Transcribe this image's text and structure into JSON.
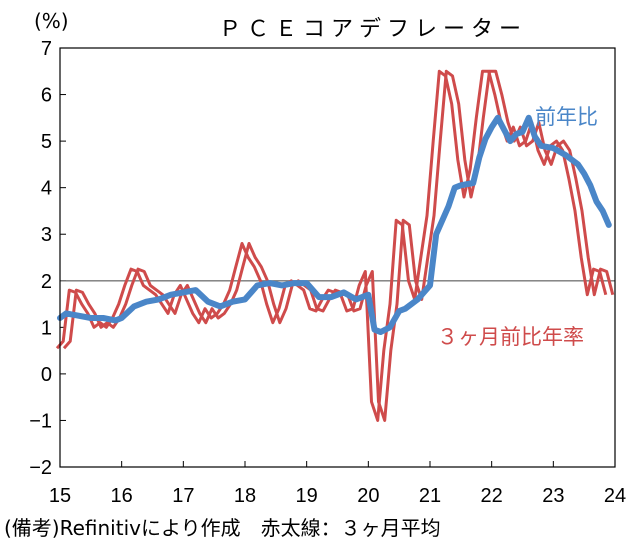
{
  "chart_data": {
    "type": "line",
    "title": "ＰＣＥコアデフレーター",
    "ylabel": "(%)",
    "xlabel": "",
    "ylim": [
      -2,
      7
    ],
    "y_ticks": [
      -2,
      -1,
      0,
      1,
      2,
      3,
      4,
      5,
      6,
      7
    ],
    "x_range": [
      15,
      24
    ],
    "x_ticks": [
      15,
      16,
      17,
      18,
      19,
      20,
      21,
      22,
      23,
      24
    ],
    "x_tick_labels": [
      "15",
      "16",
      "17",
      "18",
      "19",
      "20",
      "21",
      "22",
      "23",
      "24"
    ],
    "reference_line": 2,
    "grid": false,
    "series": [
      {
        "name": "前年比",
        "color": "#4a86c8",
        "x": [
          15.0,
          15.1,
          15.3,
          15.5,
          15.7,
          15.9,
          16.0,
          16.2,
          16.4,
          16.6,
          16.8,
          17.0,
          17.2,
          17.4,
          17.6,
          17.8,
          18.0,
          18.2,
          18.4,
          18.6,
          18.8,
          19.0,
          19.2,
          19.4,
          19.6,
          19.8,
          20.0,
          20.1,
          20.2,
          20.35,
          20.5,
          20.6,
          20.8,
          21.0,
          21.1,
          21.3,
          21.4,
          21.5,
          21.7,
          21.8,
          21.9,
          22.0,
          22.1,
          22.2,
          22.3,
          22.4,
          22.5,
          22.6,
          22.7,
          22.8,
          23.0,
          23.2,
          23.4,
          23.5,
          23.6,
          23.7,
          23.8,
          23.9
        ],
        "values": [
          1.2,
          1.3,
          1.25,
          1.2,
          1.2,
          1.15,
          1.2,
          1.45,
          1.55,
          1.6,
          1.7,
          1.75,
          1.8,
          1.55,
          1.45,
          1.55,
          1.6,
          1.9,
          1.95,
          1.9,
          1.95,
          1.95,
          1.65,
          1.65,
          1.75,
          1.6,
          1.7,
          0.95,
          0.9,
          1.0,
          1.35,
          1.4,
          1.6,
          1.9,
          3.0,
          3.6,
          4.0,
          4.05,
          4.1,
          4.65,
          5.05,
          5.3,
          5.5,
          5.25,
          5.0,
          5.15,
          5.2,
          5.5,
          5.1,
          4.9,
          4.85,
          4.7,
          4.5,
          4.3,
          4.05,
          3.7,
          3.5,
          3.2
        ]
      },
      {
        "name": "３ヶ月前比年率",
        "color": "#cf4b4b",
        "x": [
          15.0,
          15.1,
          15.2,
          15.3,
          15.4,
          15.5,
          15.6,
          15.7,
          15.8,
          15.9,
          16.0,
          16.1,
          16.2,
          16.3,
          16.4,
          16.5,
          16.6,
          16.7,
          16.8,
          16.9,
          17.0,
          17.1,
          17.2,
          17.3,
          17.4,
          17.5,
          17.6,
          17.7,
          17.8,
          17.9,
          18.0,
          18.1,
          18.2,
          18.3,
          18.4,
          18.5,
          18.6,
          18.7,
          18.8,
          18.9,
          19.0,
          19.1,
          19.2,
          19.3,
          19.4,
          19.5,
          19.6,
          19.7,
          19.8,
          19.9,
          20.0,
          20.1,
          20.2,
          20.3,
          20.4,
          20.5,
          20.6,
          20.7,
          20.8,
          20.9,
          21.0,
          21.1,
          21.2,
          21.3,
          21.4,
          21.5,
          21.6,
          21.7,
          21.8,
          21.9,
          22.0,
          22.1,
          22.2,
          22.3,
          22.4,
          22.5,
          22.6,
          22.7,
          22.8,
          22.9,
          23.0,
          23.1,
          23.2,
          23.3,
          23.4,
          23.5,
          23.6,
          23.7,
          23.8,
          23.9
        ],
        "values": [
          0.55,
          0.7,
          1.8,
          1.75,
          1.5,
          1.3,
          1.0,
          1.1,
          1.0,
          1.2,
          1.5,
          1.9,
          2.25,
          2.2,
          1.9,
          1.8,
          1.7,
          1.5,
          1.3,
          1.7,
          1.9,
          1.6,
          1.3,
          1.1,
          1.4,
          1.2,
          1.3,
          1.5,
          1.8,
          2.3,
          2.8,
          2.5,
          2.3,
          2.0,
          1.5,
          1.1,
          1.4,
          1.9,
          2.0,
          1.9,
          1.8,
          1.4,
          1.35,
          1.6,
          1.8,
          1.75,
          1.7,
          1.35,
          1.4,
          1.9,
          2.2,
          -0.6,
          -1.0,
          0.5,
          1.5,
          3.3,
          3.2,
          2.0,
          1.6,
          2.5,
          3.4,
          5.0,
          6.5,
          6.4,
          5.8,
          4.6,
          3.8,
          4.4,
          5.5,
          6.5,
          6.5,
          6.0,
          5.4,
          5.0,
          5.3,
          4.9,
          5.0,
          5.4,
          4.8,
          4.5,
          4.9,
          5.0,
          4.8,
          4.2,
          3.5,
          2.5,
          1.7,
          2.25,
          2.2,
          1.7
        ]
      }
    ],
    "annotations": [
      "前年比",
      "３ヶ月前比年率"
    ]
  },
  "note": "(備考)Refinitivにより作成　赤太線：３ヶ月平均"
}
